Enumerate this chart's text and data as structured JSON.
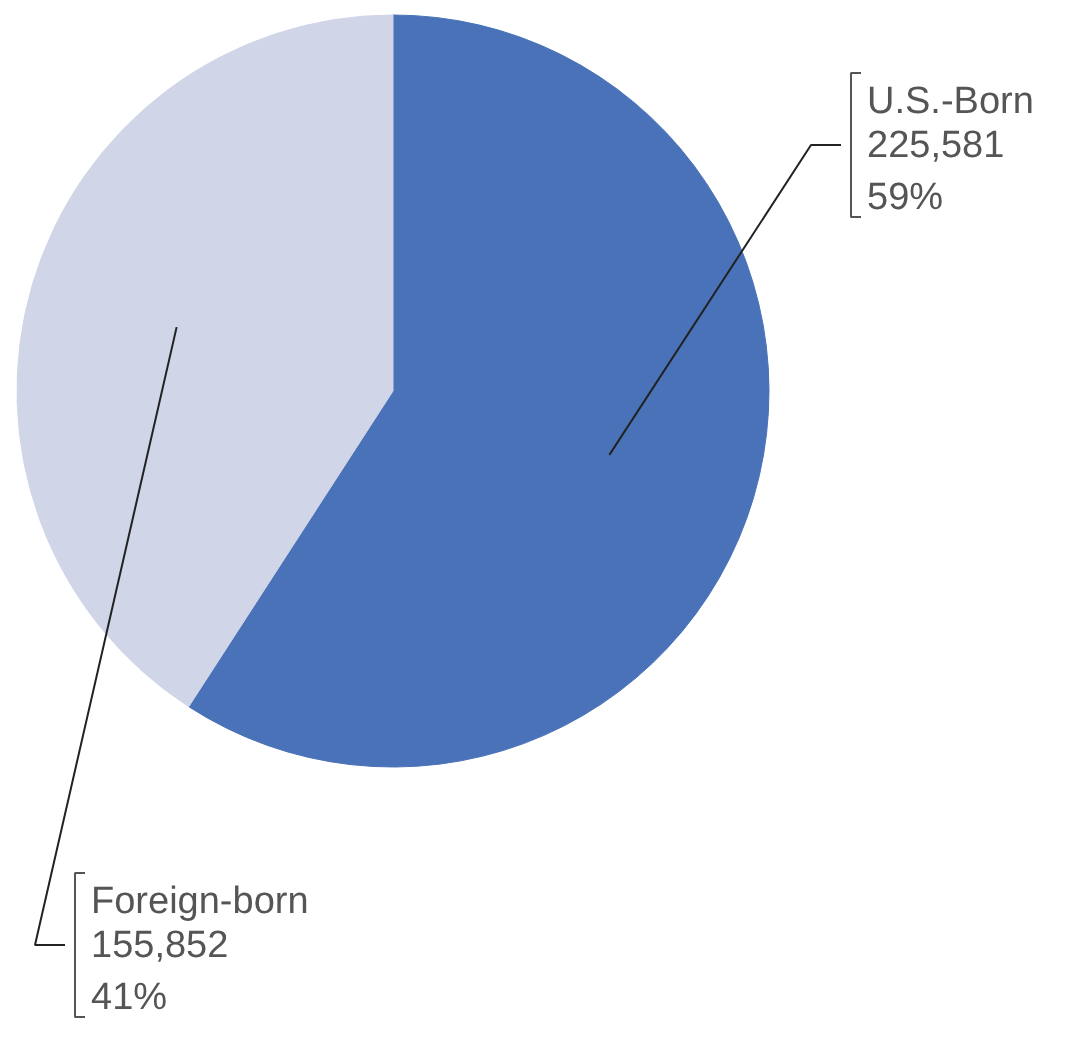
{
  "chart_data": {
    "type": "pie",
    "categories": [
      "U.S.-Born",
      "Foreign-born"
    ],
    "values": [
      225581,
      155852
    ],
    "colors": [
      "#4a72b8",
      "#d0d5e8"
    ],
    "value_labels": [
      "225,581\n59%",
      "155,852\n41%"
    ]
  }
}
